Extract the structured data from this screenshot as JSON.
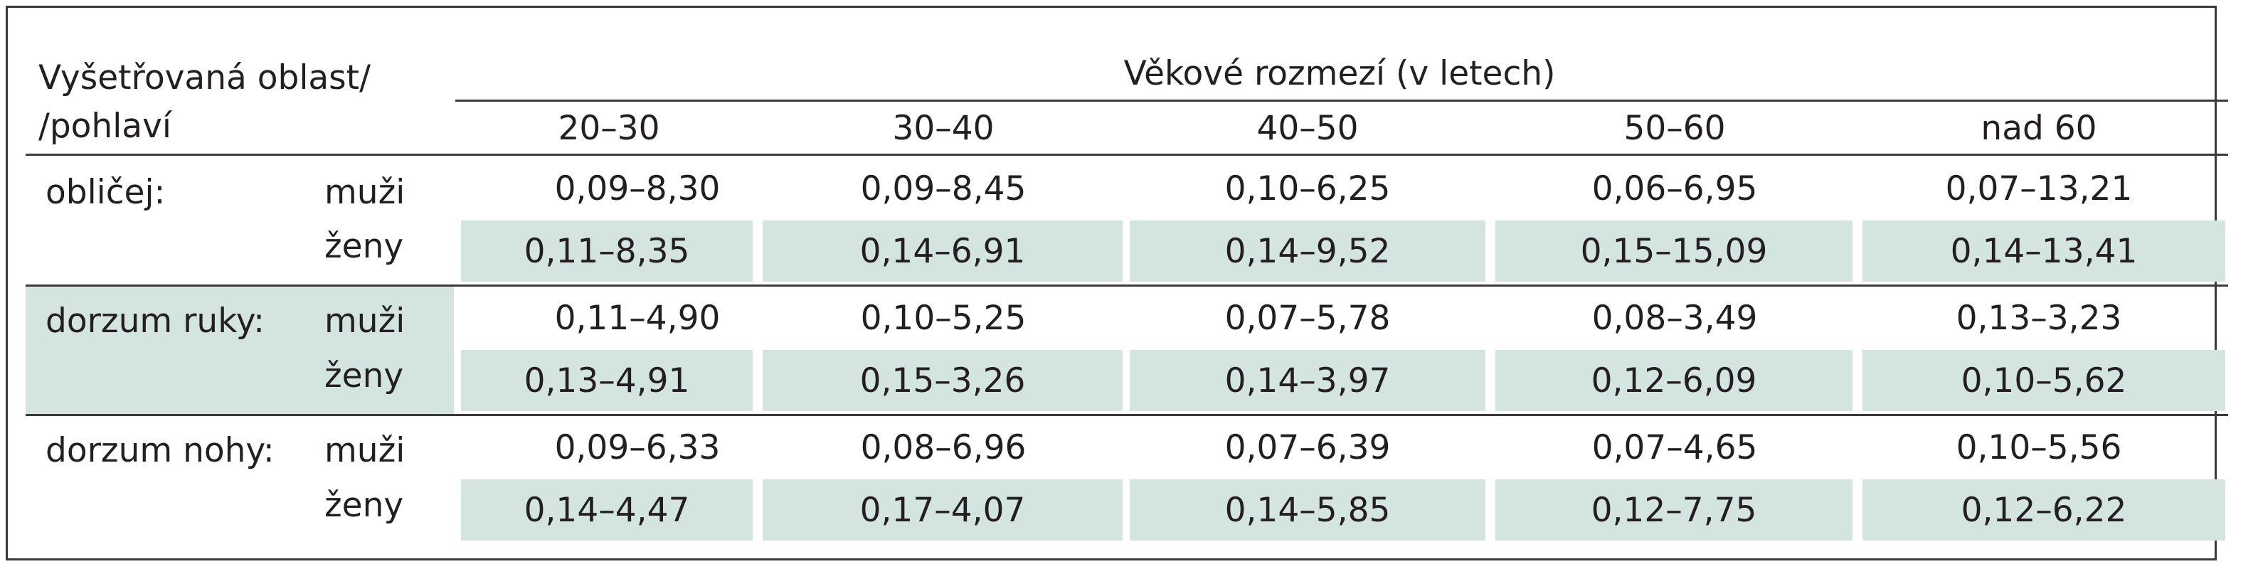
{
  "table": {
    "row_header_line1": "Vyšetřovaná oblast/",
    "row_header_line2": "/pohlaví",
    "group_header": "Věkové rozmezí (v letech)",
    "columns": [
      "20–30",
      "30–40",
      "40–50",
      "50–60",
      "nad 60"
    ],
    "regions": [
      {
        "name": "obličej:",
        "rows": [
          {
            "sex": "muži",
            "values": [
              "0,09–8,30",
              "0,09–8,45",
              "0,10–6,25",
              "0,06–6,95",
              "0,07–13,21"
            ]
          },
          {
            "sex": "ženy",
            "values": [
              "0,11–8,35",
              "0,14–6,91",
              "0,14–9,52",
              "0,15–15,09",
              "0,14–13,41"
            ]
          }
        ]
      },
      {
        "name": "dorzum ruky:",
        "rows": [
          {
            "sex": "muži",
            "values": [
              "0,11–4,90",
              "0,10–5,25",
              "0,07–5,78",
              "0,08–3,49",
              "0,13–3,23"
            ]
          },
          {
            "sex": "ženy",
            "values": [
              "0,13–4,91",
              "0,15–3,26",
              "0,14–3,97",
              "0,12–6,09",
              "0,10–5,62"
            ]
          }
        ]
      },
      {
        "name": "dorzum nohy:",
        "rows": [
          {
            "sex": "muži",
            "values": [
              "0,09–6,33",
              "0,08–6,96",
              "0,07–6,39",
              "0,07–4,65",
              "0,10–5,56"
            ]
          },
          {
            "sex": "ženy",
            "values": [
              "0,14–4,47",
              "0,17–4,07",
              "0,14–5,85",
              "0,12–7,75",
              "0,12–6,22"
            ]
          }
        ]
      }
    ],
    "colors": {
      "shade": "#d4e4e0",
      "text": "#231f20",
      "rule": "#3a3a3a"
    }
  }
}
